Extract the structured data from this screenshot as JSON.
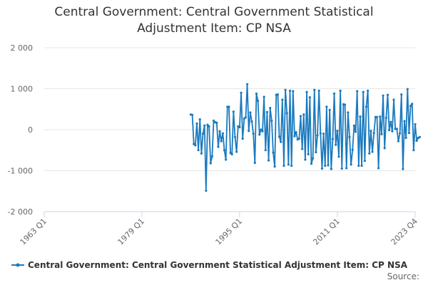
{
  "chart_data": {
    "type": "line",
    "title_line1": "Central Government: Central Government Statistical",
    "title_line2": "Adjustment Item: CP NSA",
    "ylim": [
      -2000,
      2000
    ],
    "yticks": [
      2000,
      1000,
      0,
      -1000,
      -2000
    ],
    "ytick_labels": [
      "2 000",
      "1 000",
      "0",
      "-1 000",
      "-2 000"
    ],
    "xlim": [
      1963.0,
      2023.75
    ],
    "xticks": [
      1963.0,
      1979.0,
      1995.0,
      2011.0,
      2023.75
    ],
    "xtick_labels": [
      "1963 Q1",
      "1979 Q1",
      "1995 Q1",
      "2011 Q1",
      "2023 Q4"
    ],
    "series": [
      {
        "name": "Central Government: Central Government Statistical Adjustment Item: CP NSA",
        "color": "#1a7abf",
        "start": 1987.0,
        "step": 0.25,
        "values": [
          370,
          360,
          -350,
          -380,
          150,
          -500,
          250,
          -580,
          -100,
          100,
          -1490,
          120,
          80,
          -820,
          -650,
          220,
          180,
          170,
          -420,
          -40,
          -280,
          -90,
          -500,
          -730,
          560,
          560,
          -570,
          -600,
          440,
          -180,
          -540,
          80,
          60,
          900,
          -220,
          270,
          300,
          1110,
          -30,
          420,
          200,
          -100,
          -810,
          880,
          700,
          -120,
          0,
          -40,
          800,
          -500,
          430,
          -750,
          530,
          220,
          -560,
          -900,
          850,
          860,
          -170,
          -300,
          730,
          -880,
          970,
          400,
          -850,
          950,
          -880,
          940,
          -160,
          -60,
          -240,
          -220,
          330,
          -470,
          370,
          -730,
          920,
          -600,
          790,
          -830,
          -700,
          970,
          -550,
          -140,
          950,
          -90,
          -950,
          -100,
          -880,
          560,
          -870,
          480,
          -960,
          -230,
          880,
          -370,
          -30,
          -660,
          950,
          -950,
          620,
          610,
          -940,
          420,
          -180,
          -850,
          -490,
          100,
          -50,
          940,
          -880,
          320,
          -880,
          920,
          -760,
          560,
          950,
          -580,
          -30,
          -540,
          -80,
          310,
          310,
          -940,
          320,
          -110,
          830,
          -450,
          290,
          850,
          -10,
          190,
          -40,
          730,
          20,
          20,
          -280,
          -90,
          860,
          -960,
          210,
          -200,
          990,
          -80,
          580,
          630,
          -500,
          130,
          -270,
          -200,
          -180
        ]
      }
    ],
    "legend": {
      "label": "Central Government: Central Government Statistical Adjustment Item: CP NSA",
      "position": "bottom"
    },
    "source": "Source:"
  }
}
